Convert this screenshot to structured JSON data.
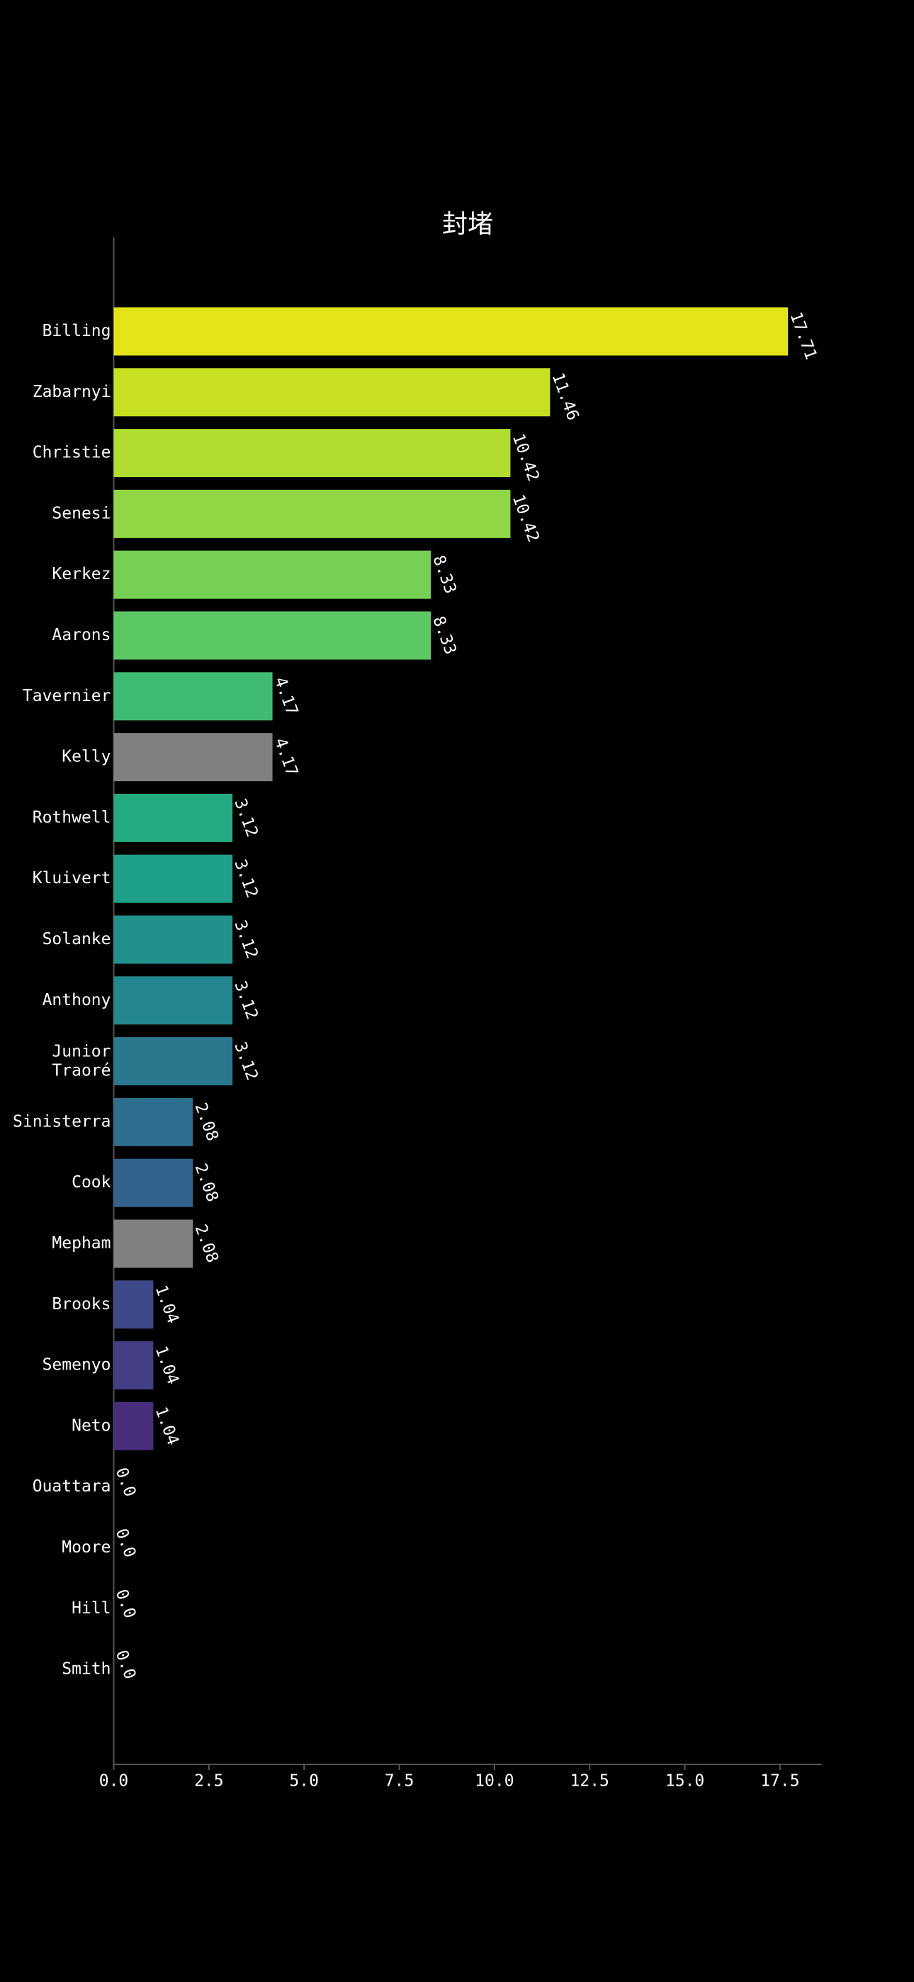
{
  "chart_data": {
    "type": "barh",
    "title": "封堵",
    "categories": [
      "Billing",
      "Zabarnyi",
      "Christie",
      "Senesi",
      "Kerkez",
      "Aarons",
      "Tavernier",
      "Kelly",
      "Rothwell",
      "Kluivert",
      "Solanke",
      "Anthony",
      "Junior\nTraoré",
      "Sinisterra",
      "Cook",
      "Mepham",
      "Brooks",
      "Semenyo",
      "Neto",
      "Ouattara",
      "Moore",
      "Hill",
      "Smith"
    ],
    "values": [
      17.71,
      11.46,
      10.42,
      10.42,
      8.33,
      8.33,
      4.17,
      4.17,
      3.12,
      3.12,
      3.12,
      3.12,
      3.12,
      2.08,
      2.08,
      2.08,
      1.04,
      1.04,
      1.04,
      0,
      0,
      0,
      0
    ],
    "value_labels": [
      "17.71",
      "11.46",
      "10.42",
      "10.42",
      "8.33",
      "8.33",
      "4.17",
      "4.17",
      "3.12",
      "3.12",
      "3.12",
      "3.12",
      "3.12",
      "2.08",
      "2.08",
      "2.08",
      "1.04",
      "1.04",
      "1.04",
      "0.0",
      "0.0",
      "0.0",
      "0.0"
    ],
    "colors": [
      "#e2e418",
      "#c8e020",
      "#b0dd2f",
      "#8fd744",
      "#75d054",
      "#5cc863",
      "#3fbc73",
      "#808080",
      "#25ab82",
      "#1fa088",
      "#21918c",
      "#24868e",
      "#2a788e",
      "#2e6e8e",
      "#33638d",
      "#808080",
      "#3e4989",
      "#433e85",
      "#472d7b",
      "#481a6c",
      "#481a6c",
      "#440154",
      "#440154"
    ],
    "xlim": [
      0,
      18.6
    ],
    "xticks": [
      {
        "value": 0,
        "label": "0.0"
      },
      2.5,
      {
        "value": 5,
        "label": "5.0"
      },
      7.5,
      {
        "value": 10,
        "label": "10.0"
      },
      12.5,
      {
        "value": 15,
        "label": "15.0"
      },
      17.5
    ]
  }
}
